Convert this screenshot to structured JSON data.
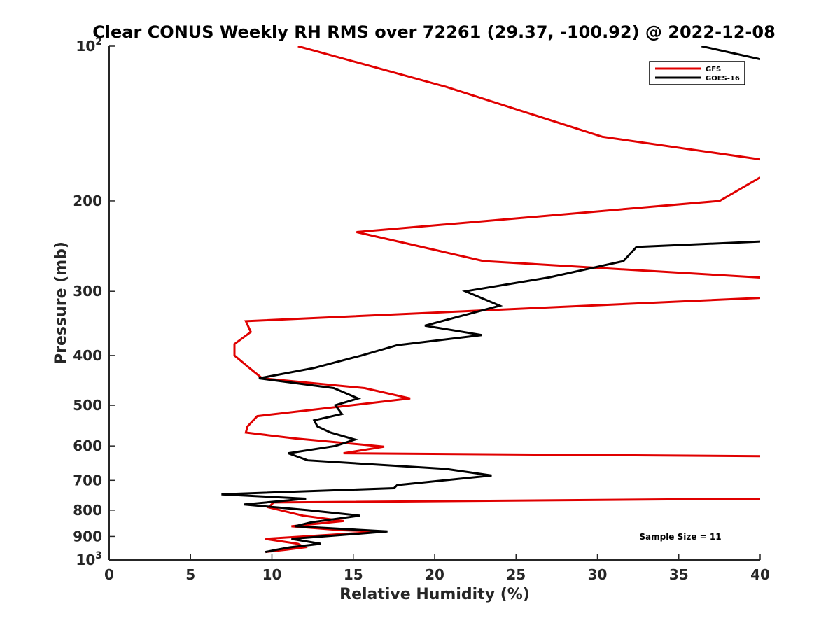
{
  "chart_data": {
    "type": "line",
    "title": "Clear CONUS Weekly RH RMS over 72261 (29.37, -100.92) @ 2022-12-08",
    "xlabel": "Relative Humidity (%)",
    "ylabel": "Pressure (mb)",
    "xlim": [
      0,
      40
    ],
    "ylim": [
      100,
      1000
    ],
    "y_scale": "log",
    "y_reversed": true,
    "grid": false,
    "legend_position": "top-right",
    "x_ticks": [
      0,
      5,
      10,
      15,
      20,
      25,
      30,
      35,
      40
    ],
    "x_tick_labels": [
      "0",
      "5",
      "10",
      "15",
      "20",
      "25",
      "30",
      "35",
      "40"
    ],
    "y_ticks": [
      100,
      200,
      300,
      400,
      500,
      600,
      700,
      800,
      900,
      1000
    ],
    "y_tick_labels": [
      {
        "base": "10",
        "exp": "2"
      },
      {
        "base": "200",
        "exp": ""
      },
      {
        "base": "300",
        "exp": ""
      },
      {
        "base": "400",
        "exp": ""
      },
      {
        "base": "500",
        "exp": ""
      },
      {
        "base": "600",
        "exp": ""
      },
      {
        "base": "700",
        "exp": ""
      },
      {
        "base": "800",
        "exp": ""
      },
      {
        "base": "900",
        "exp": ""
      },
      {
        "base": "10",
        "exp": "3"
      }
    ],
    "annotation": "Sample Size = 11",
    "series": [
      {
        "name": "GFS",
        "color": "#e00000",
        "points": [
          [
            11.6,
            100
          ],
          [
            20.7,
            120
          ],
          [
            30.3,
            150
          ],
          [
            40.0,
            166
          ],
          [
            null,
            null
          ],
          [
            40.0,
            180
          ],
          [
            37.5,
            200
          ],
          [
            15.2,
            230
          ],
          [
            23.0,
            262
          ],
          [
            40.0,
            282
          ],
          [
            null,
            null
          ],
          [
            40.0,
            309
          ],
          [
            8.4,
            343
          ],
          [
            8.7,
            360
          ],
          [
            7.7,
            380
          ],
          [
            7.7,
            400
          ],
          [
            8.5,
            420
          ],
          [
            9.4,
            443
          ],
          [
            15.7,
            463
          ],
          [
            18.5,
            485
          ],
          [
            9.1,
            525
          ],
          [
            8.5,
            550
          ],
          [
            8.4,
            565
          ],
          [
            11.4,
            580
          ],
          [
            16.9,
            602
          ],
          [
            14.4,
            620
          ],
          [
            40.0,
            628
          ],
          [
            null,
            null
          ],
          [
            40.0,
            760
          ],
          [
            10.1,
            773
          ],
          [
            9.8,
            790
          ],
          [
            11.9,
            820
          ],
          [
            14.4,
            840
          ],
          [
            11.2,
            860
          ],
          [
            14.2,
            875
          ],
          [
            16.9,
            880
          ],
          [
            9.6,
            910
          ],
          [
            11.6,
            930
          ],
          [
            12.0,
            945
          ],
          [
            10.9,
            955
          ],
          [
            9.6,
            965
          ]
        ]
      },
      {
        "name": "GOES-16",
        "color": "#000000",
        "points": [
          [
            36.4,
            100
          ],
          [
            40.0,
            106
          ],
          [
            null,
            null
          ],
          [
            40.0,
            240
          ],
          [
            32.4,
            246
          ],
          [
            31.6,
            262
          ],
          [
            27.0,
            282
          ],
          [
            21.9,
            300
          ],
          [
            24.0,
            320
          ],
          [
            19.4,
            350
          ],
          [
            22.9,
            365
          ],
          [
            17.7,
            382
          ],
          [
            15.5,
            400
          ],
          [
            12.6,
            423
          ],
          [
            9.2,
            443
          ],
          [
            13.8,
            463
          ],
          [
            15.3,
            485
          ],
          [
            13.9,
            500
          ],
          [
            14.3,
            520
          ],
          [
            12.6,
            535
          ],
          [
            12.8,
            550
          ],
          [
            13.6,
            565
          ],
          [
            15.1,
            583
          ],
          [
            13.9,
            600
          ],
          [
            11.0,
            620
          ],
          [
            12.2,
            640
          ],
          [
            20.7,
            665
          ],
          [
            23.5,
            685
          ],
          [
            17.7,
            715
          ],
          [
            17.5,
            725
          ],
          [
            6.9,
            745
          ],
          [
            12.1,
            760
          ],
          [
            8.3,
            780
          ],
          [
            12.2,
            800
          ],
          [
            15.4,
            820
          ],
          [
            12.4,
            845
          ],
          [
            11.4,
            860
          ],
          [
            17.1,
            880
          ],
          [
            11.2,
            910
          ],
          [
            13.0,
            930
          ],
          [
            11.1,
            945
          ],
          [
            10.3,
            955
          ],
          [
            9.6,
            965
          ]
        ]
      }
    ]
  }
}
